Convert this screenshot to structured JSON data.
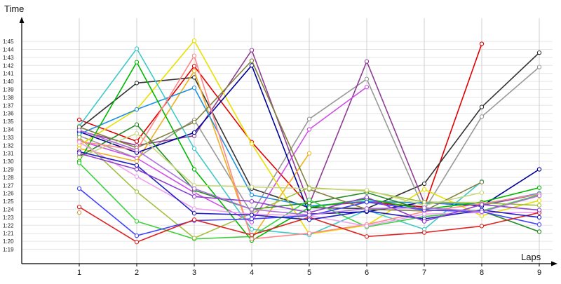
{
  "chart_data": {
    "type": "line",
    "title": "",
    "xlabel": "Laps",
    "ylabel": "Time",
    "x": [
      1,
      2,
      3,
      4,
      5,
      6,
      7,
      8,
      9
    ],
    "ylim": [
      "1:19",
      "1:46"
    ],
    "yticks": [
      "1:19",
      "1:20",
      "1:21",
      "1:22",
      "1:23",
      "1:24",
      "1:25",
      "1:26",
      "1:27",
      "1:28",
      "1:29",
      "1:30",
      "1:31",
      "1:32",
      "1:33",
      "1:34",
      "1:35",
      "1:36",
      "1:37",
      "1:38",
      "1:39",
      "1:40",
      "1:41",
      "1:42",
      "1:43",
      "1:44",
      "1:45"
    ],
    "grid": "vertical",
    "legend": "none",
    "series": [
      {
        "color": "#e00000",
        "values": [
          "1:35.2",
          "1:32.5",
          "1:41.9",
          "1:32.4",
          "1:24.4",
          "1:24.9",
          "1:24.3",
          "1:44.7",
          null
        ]
      },
      {
        "color": "#333333",
        "values": [
          "1:34.1",
          "1:39.8",
          "1:40.5",
          "1:26.6",
          "1:24.2",
          "1:24.1",
          "1:27.2",
          "1:36.8",
          "1:43.6"
        ]
      },
      {
        "color": "#999999",
        "values": [
          "1:33.2",
          "1:30.4",
          "1:35.2",
          "1:23.5",
          "1:35.3",
          "1:40.3",
          "1:23.9",
          "1:35.6",
          "1:41.8"
        ]
      },
      {
        "color": "#8e3c94",
        "values": [
          "1:33.8",
          "1:32.0",
          "1:33.2",
          "1:43.9",
          "1:24.6",
          "1:42.5",
          "1:24.8",
          "1:24.5",
          "1:25.9"
        ]
      },
      {
        "color": "#d04ee8",
        "values": [
          "1:32.6",
          "1:30.4",
          "1:26.1",
          "1:22.4",
          "1:34.0",
          "1:39.3",
          null,
          null,
          null
        ]
      },
      {
        "color": "#e8e000",
        "values": [
          "1:32.0",
          "1:36.5",
          "1:45.1",
          "1:32.2",
          "1:20.9",
          "1:22.0",
          "1:26.5",
          "1:23.2",
          "1:25.1"
        ]
      },
      {
        "color": "#f0b020",
        "values": [
          "1:31.6",
          "1:30.0",
          "1:41.3",
          "1:20.4",
          "1:31.0",
          null,
          null,
          null,
          null
        ]
      },
      {
        "color": "#000099",
        "values": [
          "1:33.7",
          "1:31.1",
          "1:33.6",
          "1:42.0",
          "1:23.4",
          "1:23.7",
          "1:24.9",
          "1:24.4",
          "1:29.0"
        ]
      },
      {
        "color": "#2090e0",
        "values": [
          "1:33.4",
          "1:36.5",
          "1:39.2",
          "1:25.8",
          "1:24.4",
          "1:25.0",
          "1:24.8",
          "1:24.6",
          "1:26.0"
        ]
      },
      {
        "color": "#40c8c8",
        "values": [
          "1:34.4",
          "1:44.1",
          "1:31.6",
          "1:21.5",
          "1:20.8",
          "1:23.9",
          "1:21.5",
          "1:27.5",
          null
        ]
      },
      {
        "color": "#00b800",
        "values": [
          "1:30.0",
          "1:42.4",
          "1:29.0",
          "1:20.1",
          "1:24.2",
          "1:25.3",
          "1:24.0",
          "1:24.9",
          "1:26.7"
        ]
      },
      {
        "color": "#248a24",
        "values": [
          "1:30.6",
          "1:34.6",
          "1:26.4",
          "1:24.0",
          "1:24.8",
          "1:26.1",
          "1:23.9",
          "1:23.8",
          "1:21.2"
        ]
      },
      {
        "color": "#3cd03c",
        "values": [
          "1:29.8",
          "1:22.5",
          "1:20.3",
          "1:20.6",
          "1:25.2",
          "1:21.8",
          "1:23.1",
          "1:23.8",
          "1:25.8"
        ]
      },
      {
        "color": "#808040",
        "values": [
          "1:34.3",
          "1:31.7",
          "1:34.9",
          "1:42.6",
          "1:26.5",
          "1:24.0",
          "1:23.8",
          "1:27.4",
          null
        ]
      },
      {
        "color": "#a0c040",
        "values": [
          "1:33.0",
          "1:26.2",
          "1:20.4",
          "1:23.5",
          "1:26.7",
          "1:26.3",
          "1:24.9",
          "1:24.8",
          "1:24.5"
        ]
      },
      {
        "color": "#c8d880",
        "values": [
          "1:30.5",
          "1:33.5",
          "1:27.0",
          "1:26.8",
          "1:26.6",
          "1:26.4",
          "1:24.5",
          "1:26.1",
          null
        ]
      },
      {
        "color": "#ff8888",
        "values": [
          "1:32.5",
          "1:31.4",
          "1:43.2",
          "1:20.3",
          "1:21.0",
          "1:22.1",
          "1:23.7",
          "1:24.7",
          "1:25.9"
        ]
      },
      {
        "color": "#f0a0f0",
        "values": [
          "1:32.4",
          "1:28.1",
          "1:24.1",
          "1:23.4",
          "1:23.2",
          "1:21.9",
          "1:23.4",
          "1:23.6",
          "1:23.6"
        ]
      },
      {
        "color": "#4040ff",
        "values": [
          "1:26.6",
          "1:20.7",
          "1:22.6",
          "1:22.8",
          "1:23.2",
          "1:24.9",
          "1:23.9",
          "1:23.7",
          "1:22.1"
        ]
      },
      {
        "color": "#dd2222",
        "values": [
          "1:24.3",
          "1:19.9",
          "1:22.7",
          "1:20.8",
          "1:23.0",
          "1:20.6",
          "1:21.1",
          "1:21.9",
          "1:23.6"
        ]
      },
      {
        "color": "#2020c0",
        "values": [
          "1:31.2",
          "1:29.5",
          "1:23.5",
          "1:23.3",
          "1:22.7",
          "1:23.8",
          "1:22.8",
          "1:23.9",
          "1:23.0"
        ]
      },
      {
        "color": "#9040d0",
        "values": [
          "1:31.0",
          "1:29.0",
          "1:25.6",
          "1:25.0",
          "1:23.6",
          "1:25.5",
          "1:22.5",
          "1:24.6",
          "1:23.9"
        ]
      },
      {
        "color": "#b070e0",
        "values": [
          "1:33.9",
          "1:31.4",
          "1:26.6",
          "1:24.0",
          "1:23.3",
          "1:24.1",
          "1:24.2",
          "1:23.7",
          "1:25.7"
        ]
      },
      {
        "color": "#c8a040",
        "values": [
          "1:23.6",
          null,
          null,
          null,
          null,
          null,
          null,
          null,
          null
        ]
      }
    ]
  }
}
